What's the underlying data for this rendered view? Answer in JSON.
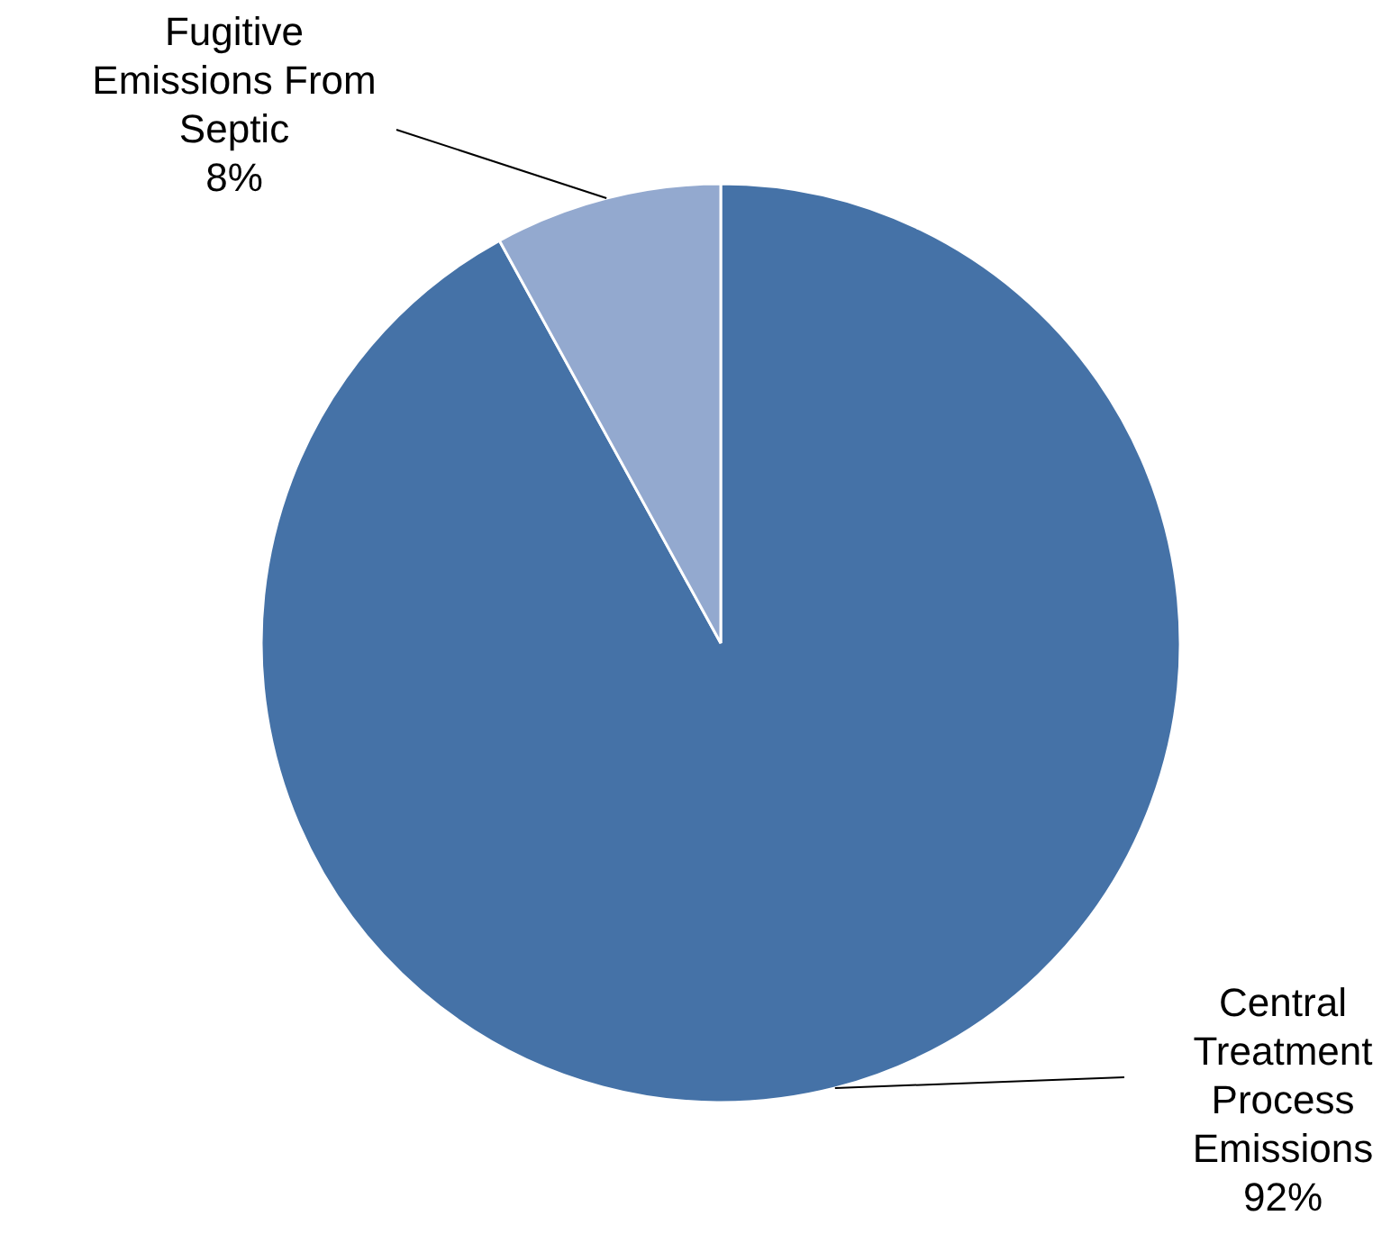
{
  "chart_data": {
    "type": "pie",
    "categories": [
      "Central Treatment Process Emissions",
      "Fugitive Emissions From Septic"
    ],
    "values": [
      92,
      8
    ],
    "colors": [
      "#4572a7",
      "#93a9cf"
    ],
    "value_labels": [
      "92%",
      "8%"
    ]
  }
}
